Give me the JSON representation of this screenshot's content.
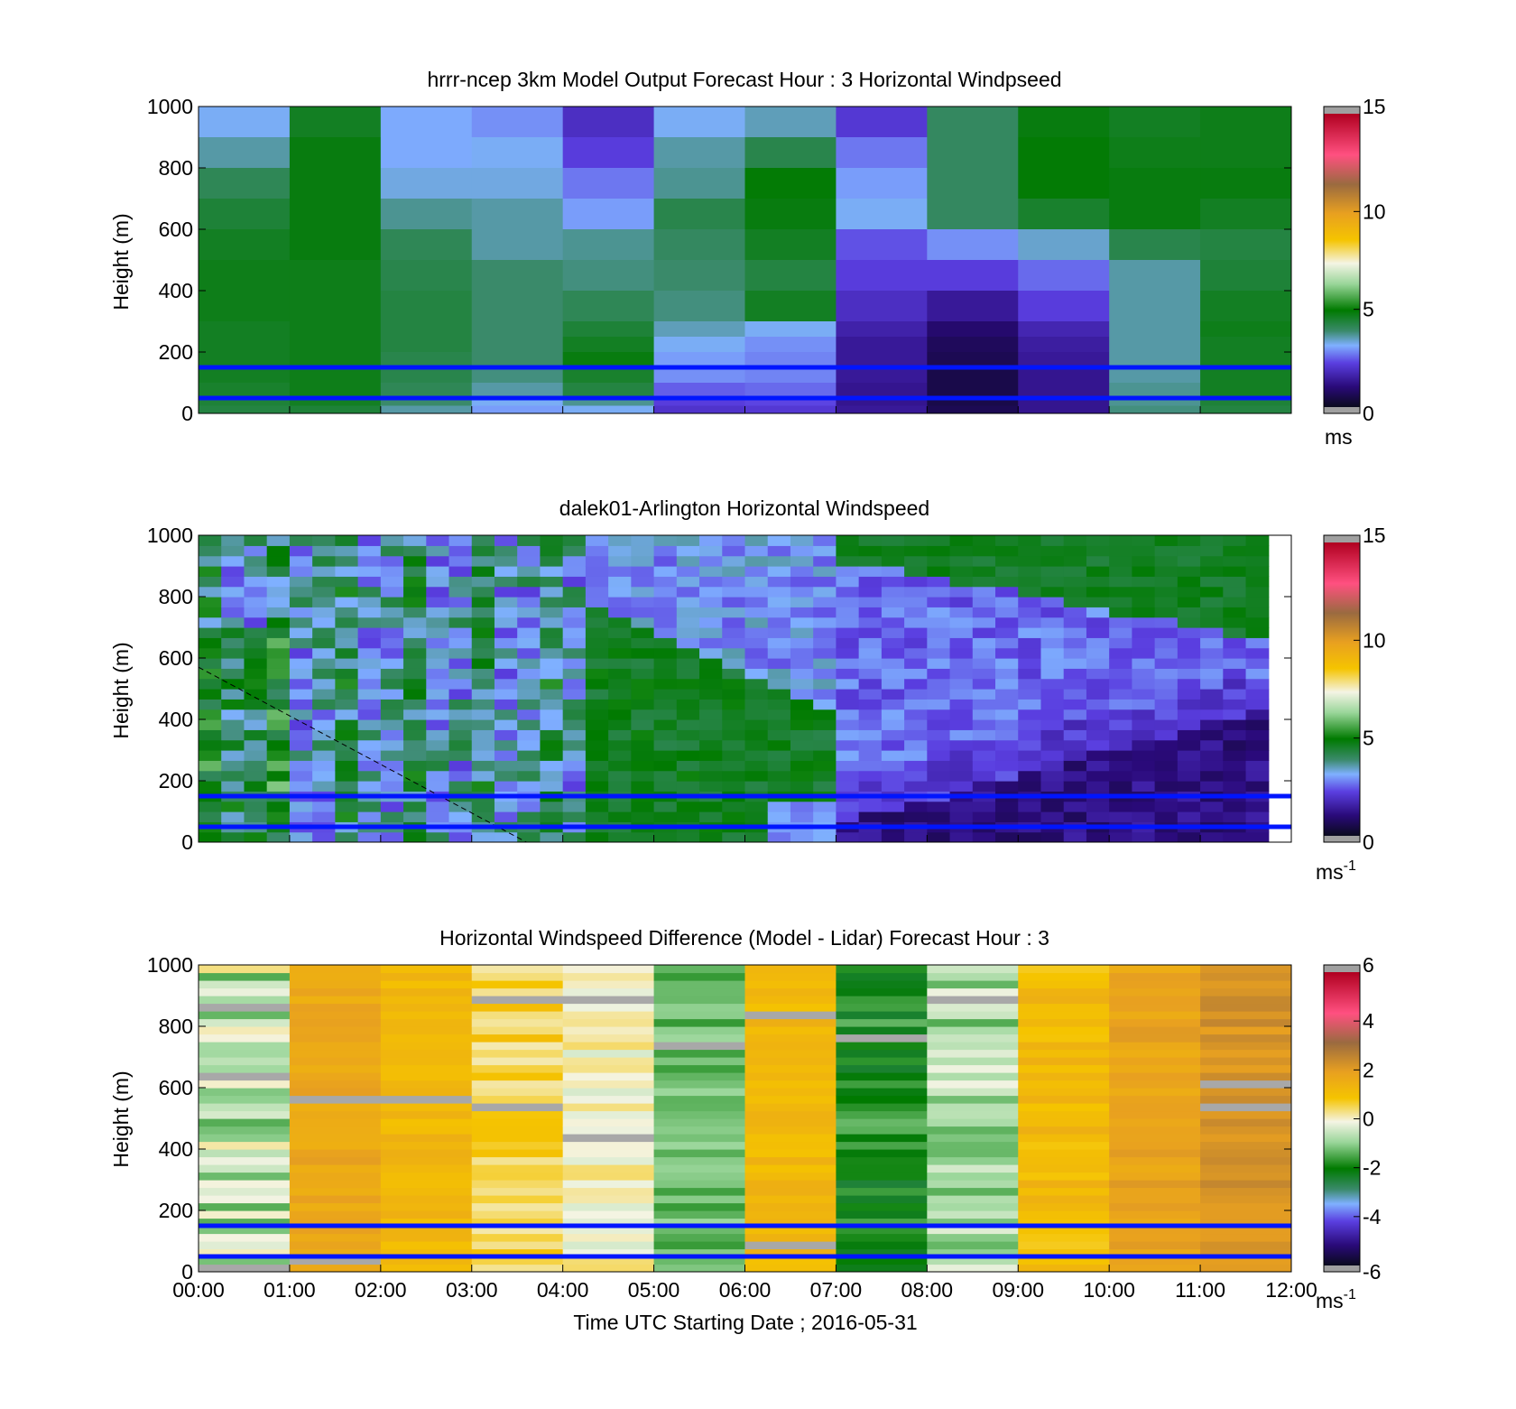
{
  "chart_data": [
    {
      "type": "heatmap",
      "title": "hrrr-ncep 3km Model Output   Forecast Hour : 3 Horizontal Windpseed",
      "ylabel": "Height (m)",
      "xlabel": "",
      "ylim": [
        0,
        1000
      ],
      "xlim": [
        0,
        12
      ],
      "yticks": [
        "0",
        "200",
        "400",
        "600",
        "800",
        "1000"
      ],
      "colorbar": {
        "ticks": [
          "0",
          "5",
          "10",
          "15"
        ],
        "range": [
          0,
          15
        ],
        "unit_main": "ms",
        "unit_sup": ""
      },
      "reference_lines_height_m": [
        150,
        50
      ],
      "columns": 12,
      "rows_height_m": [
        1000,
        900,
        800,
        700,
        600,
        500,
        400,
        300,
        250,
        200,
        150,
        100,
        50,
        25
      ],
      "values_ms": [
        [
          3.2,
          4.6,
          3.1,
          2.9,
          1.9,
          3.2,
          3.5,
          2.1,
          4.0,
          4.8,
          4.6,
          4.7
        ],
        [
          3.6,
          4.8,
          3.1,
          3.2,
          2.2,
          3.6,
          4.2,
          2.7,
          4.0,
          4.9,
          4.7,
          4.7
        ],
        [
          4.1,
          4.8,
          3.3,
          3.3,
          2.7,
          3.7,
          4.9,
          3.0,
          4.0,
          4.9,
          4.8,
          4.8
        ],
        [
          4.4,
          4.8,
          3.7,
          3.6,
          3.0,
          4.2,
          4.8,
          3.2,
          4.0,
          4.5,
          4.8,
          4.6
        ],
        [
          4.6,
          4.8,
          4.1,
          3.6,
          3.7,
          4.0,
          4.6,
          2.4,
          2.9,
          3.4,
          4.2,
          4.3
        ],
        [
          4.7,
          4.7,
          4.2,
          3.9,
          3.8,
          3.9,
          4.3,
          2.2,
          2.2,
          2.6,
          3.6,
          4.4
        ],
        [
          4.7,
          4.7,
          4.3,
          3.9,
          4.1,
          3.8,
          4.6,
          1.9,
          1.4,
          2.2,
          3.6,
          4.6
        ],
        [
          4.6,
          4.7,
          4.3,
          3.9,
          4.4,
          3.5,
          3.2,
          1.6,
          0.9,
          1.7,
          3.6,
          4.7
        ],
        [
          4.6,
          4.7,
          4.3,
          3.9,
          4.6,
          3.2,
          2.9,
          1.4,
          0.7,
          1.5,
          3.6,
          4.6
        ],
        [
          4.6,
          4.7,
          4.2,
          3.9,
          4.8,
          3.0,
          2.8,
          1.4,
          0.6,
          1.4,
          3.6,
          4.6
        ],
        [
          4.6,
          4.7,
          4.2,
          3.8,
          4.5,
          2.9,
          2.8,
          1.4,
          0.5,
          1.3,
          3.6,
          4.6
        ],
        [
          4.5,
          4.7,
          4.1,
          3.6,
          4.3,
          2.5,
          2.6,
          1.3,
          0.5,
          1.3,
          3.7,
          4.6
        ],
        [
          4.4,
          4.6,
          3.9,
          3.2,
          3.7,
          2.2,
          2.3,
          1.3,
          0.5,
          1.3,
          3.7,
          4.4
        ],
        [
          4.3,
          4.4,
          3.6,
          3.0,
          3.2,
          2.0,
          2.1,
          1.4,
          0.6,
          1.3,
          3.8,
          4.3
        ]
      ]
    },
    {
      "type": "heatmap",
      "title": "dalek01-Arlington  Horizontal Windspeed",
      "ylabel": "Height (m)",
      "xlabel": "",
      "ylim": [
        0,
        1000
      ],
      "xlim": [
        0,
        12
      ],
      "yticks": [
        "0",
        "200",
        "400",
        "600",
        "800",
        "1000"
      ],
      "colorbar": {
        "ticks": [
          "0",
          "5",
          "10",
          "15"
        ],
        "range": [
          0,
          15
        ],
        "unit_main": "ms",
        "unit_sup": "-1"
      },
      "reference_lines_height_m": [
        150,
        50
      ],
      "dashed_line": {
        "x": [
          0,
          3.6
        ],
        "y": [
          570,
          0
        ]
      },
      "data_end_hour": 11.85,
      "columns": 48,
      "rows": 30
    },
    {
      "type": "heatmap",
      "title": "Horizontal Windspeed Difference (Model - Lidar) Forecast Hour : 3",
      "ylabel": "Height (m)",
      "xlabel": "Time UTC  Starting Date ; 2016-05-31",
      "ylim": [
        0,
        1000
      ],
      "xlim": [
        0,
        12
      ],
      "yticks": [
        "0",
        "200",
        "400",
        "600",
        "800",
        "1000"
      ],
      "xticks": [
        "00:00",
        "01:00",
        "02:00",
        "03:00",
        "04:00",
        "05:00",
        "06:00",
        "07:00",
        "08:00",
        "09:00",
        "10:00",
        "11:00",
        "12:00"
      ],
      "colorbar": {
        "ticks": [
          "-6",
          "-4",
          "-2",
          "0",
          "2",
          "4",
          "6"
        ],
        "range": [
          -6,
          6
        ],
        "unit_main": "ms",
        "unit_sup": "-1"
      },
      "reference_lines_height_m": [
        150,
        50
      ],
      "columns": 12,
      "column_profiles": [
        {
          "base": -0.6,
          "amp": 0.9
        },
        {
          "base": 1.7,
          "amp": 0.3
        },
        {
          "base": 1.2,
          "amp": 0.3
        },
        {
          "base": 0.6,
          "amp": 0.5
        },
        {
          "base": 0.0,
          "amp": 0.4
        },
        {
          "base": -1.3,
          "amp": 0.4
        },
        {
          "base": 1.2,
          "amp": 0.3
        },
        {
          "base": -1.9,
          "amp": 0.6
        },
        {
          "base": -0.8,
          "amp": 0.7
        },
        {
          "base": 1.1,
          "amp": 0.4
        },
        {
          "base": 1.8,
          "amp": 0.3
        },
        {
          "base": 2.2,
          "amp": 0.3
        }
      ]
    }
  ]
}
